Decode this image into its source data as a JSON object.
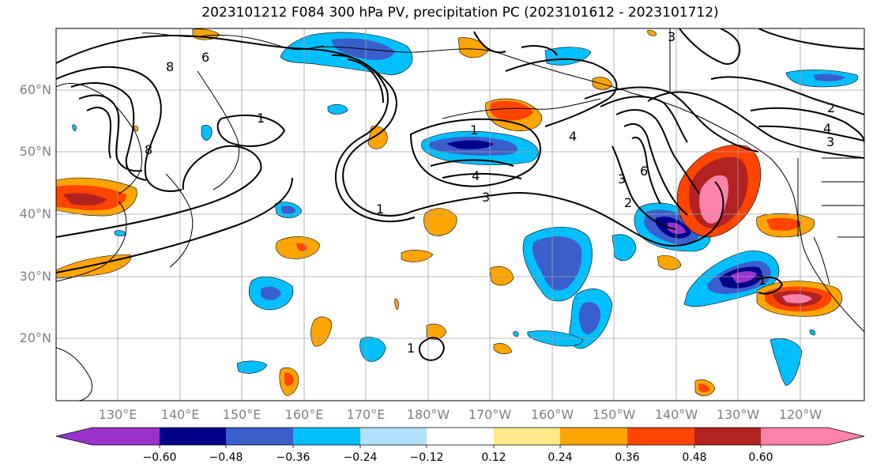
{
  "title": "2023101212 F084 300 hPa PV, precipitation PC (2023101612 - 2023101712)",
  "lat_labels": [
    "60°N",
    "50°N",
    "40°N",
    "30°N",
    "20°N"
  ],
  "lon_labels": [
    "130°E",
    "140°E",
    "150°E",
    "160°E",
    "170°E",
    "180°W",
    "170°W",
    "160°W",
    "150°W",
    "140°W",
    "130°W",
    "120°W"
  ],
  "contour_labels": [
    "8",
    "6",
    "8",
    "1",
    "1",
    "4",
    "3",
    "1",
    "3",
    "2",
    "6",
    "4",
    "2",
    "4",
    "3",
    "1",
    "1",
    "3"
  ],
  "colorbar": {
    "tick_labels": [
      "−0.60",
      "−0.48",
      "−0.36",
      "−0.24",
      "−0.12",
      "0.12",
      "0.24",
      "0.36",
      "0.48",
      "0.60"
    ],
    "colors": [
      "#9932cc",
      "#00008b",
      "#3a5fcd",
      "#00bfff",
      "#b0e2ff",
      "#ffffff",
      "#ffe98a",
      "#ffa500",
      "#ff4500",
      "#b22222",
      "#ff82ab"
    ]
  }
}
